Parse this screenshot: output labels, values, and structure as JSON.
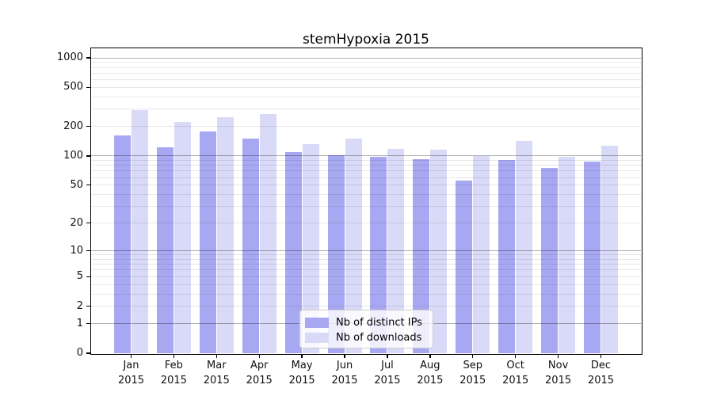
{
  "title": "stemHypoxia 2015",
  "chart_data": {
    "type": "bar",
    "title": "stemHypoxia 2015",
    "categories": [
      "Jan",
      "Feb",
      "Mar",
      "Apr",
      "May",
      "Jun",
      "Jul",
      "Aug",
      "Sep",
      "Oct",
      "Nov",
      "Dec"
    ],
    "x_tick_second_line": "2015",
    "series": [
      {
        "name": "Nb of distinct IPs",
        "color": "#a8a8f2",
        "values": [
          163,
          123,
          178,
          150,
          109,
          102,
          98,
          93,
          56,
          90,
          76,
          87
        ]
      },
      {
        "name": "Nb of downloads",
        "color": "#d9d9f8",
        "values": [
          294,
          224,
          250,
          268,
          131,
          150,
          118,
          116,
          99,
          142,
          97,
          128
        ]
      }
    ],
    "y_scale": "log1p",
    "ylim": [
      0,
      1250
    ],
    "y_ticks": [
      0,
      1,
      2,
      5,
      10,
      20,
      50,
      100,
      200,
      500,
      1000
    ],
    "grid": {
      "on": true,
      "major": [
        1,
        10,
        100,
        1000
      ],
      "minor": [
        2,
        3,
        4,
        5,
        6,
        7,
        8,
        9,
        20,
        30,
        40,
        50,
        60,
        70,
        80,
        90,
        200,
        300,
        400,
        500,
        600,
        700,
        800,
        900
      ]
    },
    "legend_position": "lower center",
    "colors": {
      "major_grid": "#b0b0b0",
      "minor_grid": "#e8e8e8",
      "axis": "#000000",
      "background": "#ffffff"
    }
  }
}
